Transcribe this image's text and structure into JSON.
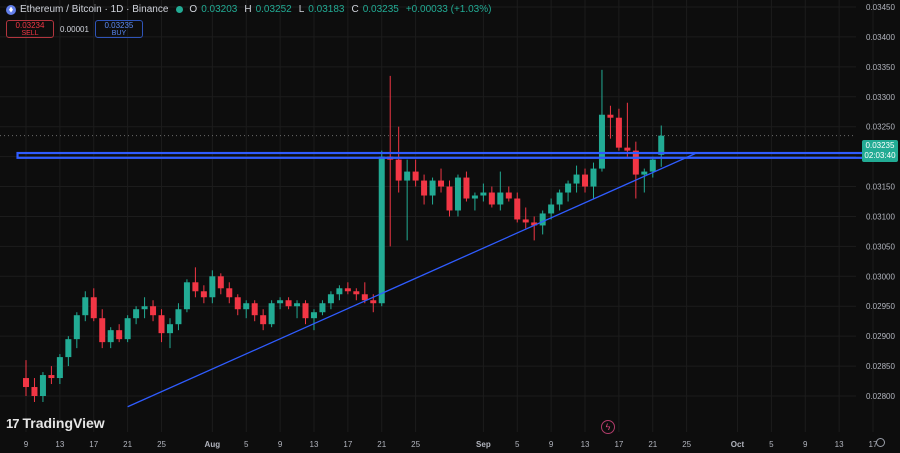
{
  "header": {
    "title": "Ethereum / Bitcoin · 1D · Binance",
    "open_label": "O",
    "open": "0.03203",
    "high_label": "H",
    "high": "0.03252",
    "low_label": "L",
    "low": "0.03183",
    "close_label": "C",
    "close": "0.03235",
    "change": "+0.00033 (+1.03%)"
  },
  "trade": {
    "sell_price": "0.03234",
    "sell_label": "SELL",
    "spread": "0.00001",
    "buy_price": "0.03235",
    "buy_label": "BUY"
  },
  "price_tag": {
    "price": "0.03235",
    "countdown": "02:03:40"
  },
  "brand": {
    "name": "TradingView",
    "mark": "17"
  },
  "colors": {
    "up": "#22ab94",
    "down": "#f23645",
    "trendline": "#2f5cff",
    "resistance": "#2f5cff",
    "background": "#0d0d0d"
  },
  "icons": {
    "ethereum": "ethereum-icon",
    "alert": "lightning-icon",
    "settings": "gear-icon"
  },
  "chart_data": {
    "type": "candlestick",
    "symbol": "ETHBTC",
    "interval": "1D",
    "exchange": "Binance",
    "y_ticks": [
      "0.03450",
      "0.03400",
      "0.03350",
      "0.03300",
      "0.03250",
      "0.03200",
      "0.03150",
      "0.03100",
      "0.03050",
      "0.03000",
      "0.02950",
      "0.02900",
      "0.02850",
      "0.02800"
    ],
    "ylim": [
      0.0278,
      0.0346
    ],
    "x_ticks": [
      {
        "label": "9",
        "day": 0
      },
      {
        "label": "13",
        "day": 4
      },
      {
        "label": "17",
        "day": 8
      },
      {
        "label": "21",
        "day": 12
      },
      {
        "label": "25",
        "day": 16
      },
      {
        "label": "Aug",
        "day": 22,
        "bold": true
      },
      {
        "label": "5",
        "day": 26
      },
      {
        "label": "9",
        "day": 30
      },
      {
        "label": "13",
        "day": 34
      },
      {
        "label": "17",
        "day": 38
      },
      {
        "label": "21",
        "day": 42
      },
      {
        "label": "25",
        "day": 46
      },
      {
        "label": "Sep",
        "day": 54,
        "bold": true
      },
      {
        "label": "5",
        "day": 58
      },
      {
        "label": "9",
        "day": 62
      },
      {
        "label": "13",
        "day": 66
      },
      {
        "label": "17",
        "day": 70
      },
      {
        "label": "21",
        "day": 74
      },
      {
        "label": "25",
        "day": 78
      },
      {
        "label": "Oct",
        "day": 84,
        "bold": true
      },
      {
        "label": "5",
        "day": 88
      },
      {
        "label": "9",
        "day": 92
      },
      {
        "label": "13",
        "day": 96
      },
      {
        "label": "17",
        "day": 100
      }
    ],
    "candles": [
      [
        0.0283,
        0.0286,
        0.028,
        0.02815
      ],
      [
        0.02815,
        0.0283,
        0.0279,
        0.028
      ],
      [
        0.028,
        0.0284,
        0.0279,
        0.02835
      ],
      [
        0.02835,
        0.0285,
        0.0282,
        0.0283
      ],
      [
        0.0283,
        0.0287,
        0.0282,
        0.02865
      ],
      [
        0.02865,
        0.029,
        0.0285,
        0.02895
      ],
      [
        0.02895,
        0.0294,
        0.0288,
        0.02935
      ],
      [
        0.02935,
        0.02975,
        0.02925,
        0.02965
      ],
      [
        0.02965,
        0.0298,
        0.02925,
        0.0293
      ],
      [
        0.0293,
        0.02945,
        0.0288,
        0.0289
      ],
      [
        0.0289,
        0.02915,
        0.0288,
        0.0291
      ],
      [
        0.0291,
        0.0292,
        0.0289,
        0.02895
      ],
      [
        0.02895,
        0.02935,
        0.0289,
        0.0293
      ],
      [
        0.0293,
        0.0295,
        0.0292,
        0.02945
      ],
      [
        0.02945,
        0.02965,
        0.0293,
        0.0295
      ],
      [
        0.0295,
        0.0296,
        0.02925,
        0.02935
      ],
      [
        0.02935,
        0.02945,
        0.0289,
        0.02905
      ],
      [
        0.02905,
        0.0293,
        0.0288,
        0.0292
      ],
      [
        0.0292,
        0.02955,
        0.0291,
        0.02945
      ],
      [
        0.02945,
        0.02995,
        0.0294,
        0.0299
      ],
      [
        0.0299,
        0.03015,
        0.02965,
        0.02975
      ],
      [
        0.02975,
        0.02985,
        0.02955,
        0.02965
      ],
      [
        0.02965,
        0.0301,
        0.02955,
        0.03
      ],
      [
        0.03,
        0.03005,
        0.0297,
        0.0298
      ],
      [
        0.0298,
        0.0299,
        0.02955,
        0.02965
      ],
      [
        0.02965,
        0.0297,
        0.02935,
        0.02945
      ],
      [
        0.02945,
        0.0296,
        0.0293,
        0.02955
      ],
      [
        0.02955,
        0.0296,
        0.02925,
        0.02935
      ],
      [
        0.02935,
        0.02945,
        0.0291,
        0.0292
      ],
      [
        0.0292,
        0.0296,
        0.02915,
        0.02955
      ],
      [
        0.02955,
        0.02965,
        0.02945,
        0.0296
      ],
      [
        0.0296,
        0.02965,
        0.02945,
        0.0295
      ],
      [
        0.0295,
        0.0296,
        0.0293,
        0.02955
      ],
      [
        0.02955,
        0.0296,
        0.0292,
        0.0293
      ],
      [
        0.0293,
        0.02945,
        0.0291,
        0.0294
      ],
      [
        0.0294,
        0.0296,
        0.02935,
        0.02955
      ],
      [
        0.02955,
        0.02975,
        0.02945,
        0.0297
      ],
      [
        0.0297,
        0.02985,
        0.0296,
        0.0298
      ],
      [
        0.0298,
        0.0299,
        0.0297,
        0.02975
      ],
      [
        0.02975,
        0.0298,
        0.0296,
        0.0297
      ],
      [
        0.0297,
        0.0299,
        0.02955,
        0.0296
      ],
      [
        0.0296,
        0.0297,
        0.0294,
        0.02955
      ],
      [
        0.02955,
        0.0321,
        0.0295,
        0.032
      ],
      [
        0.032,
        0.03335,
        0.0305,
        0.03195
      ],
      [
        0.03195,
        0.0325,
        0.0314,
        0.0316
      ],
      [
        0.0316,
        0.03195,
        0.0306,
        0.03175
      ],
      [
        0.03175,
        0.03195,
        0.0315,
        0.0316
      ],
      [
        0.0316,
        0.0317,
        0.0312,
        0.03135
      ],
      [
        0.03135,
        0.03165,
        0.0312,
        0.0316
      ],
      [
        0.0316,
        0.0318,
        0.0314,
        0.0315
      ],
      [
        0.0315,
        0.0316,
        0.031,
        0.0311
      ],
      [
        0.0311,
        0.0317,
        0.031,
        0.03165
      ],
      [
        0.03165,
        0.03175,
        0.03125,
        0.0313
      ],
      [
        0.0313,
        0.0314,
        0.0311,
        0.03135
      ],
      [
        0.03135,
        0.03155,
        0.03125,
        0.0314
      ],
      [
        0.0314,
        0.0315,
        0.03115,
        0.0312
      ],
      [
        0.0312,
        0.03175,
        0.0311,
        0.0314
      ],
      [
        0.0314,
        0.0315,
        0.03125,
        0.0313
      ],
      [
        0.0313,
        0.0314,
        0.0309,
        0.03095
      ],
      [
        0.03095,
        0.03115,
        0.0308,
        0.0309
      ],
      [
        0.0309,
        0.031,
        0.0306,
        0.03085
      ],
      [
        0.03085,
        0.0311,
        0.0307,
        0.03105
      ],
      [
        0.03105,
        0.0313,
        0.03095,
        0.0312
      ],
      [
        0.0312,
        0.03145,
        0.0311,
        0.0314
      ],
      [
        0.0314,
        0.0316,
        0.03125,
        0.03155
      ],
      [
        0.03155,
        0.03185,
        0.0314,
        0.0317
      ],
      [
        0.0317,
        0.0318,
        0.0314,
        0.0315
      ],
      [
        0.0315,
        0.0319,
        0.0313,
        0.0318
      ],
      [
        0.0318,
        0.03345,
        0.03175,
        0.0327
      ],
      [
        0.0327,
        0.03285,
        0.0323,
        0.03265
      ],
      [
        0.03265,
        0.0328,
        0.0321,
        0.03215
      ],
      [
        0.03215,
        0.0329,
        0.032,
        0.0321
      ],
      [
        0.0321,
        0.03225,
        0.0313,
        0.0317
      ],
      [
        0.0317,
        0.0318,
        0.0314,
        0.03175
      ],
      [
        0.03175,
        0.032,
        0.03165,
        0.03195
      ],
      [
        0.03203,
        0.03252,
        0.03183,
        0.03235
      ]
    ],
    "lines": [
      {
        "name": "resistance",
        "type": "horizontal",
        "y": [
          0.03198,
          0.03206
        ],
        "days": [
          -1,
          101
        ]
      },
      {
        "name": "trendline",
        "type": "segment",
        "from": {
          "day": 12,
          "price": 0.02782
        },
        "to": {
          "day": 79,
          "price": 0.03205
        }
      }
    ],
    "grid": true,
    "legend": "top-left"
  }
}
